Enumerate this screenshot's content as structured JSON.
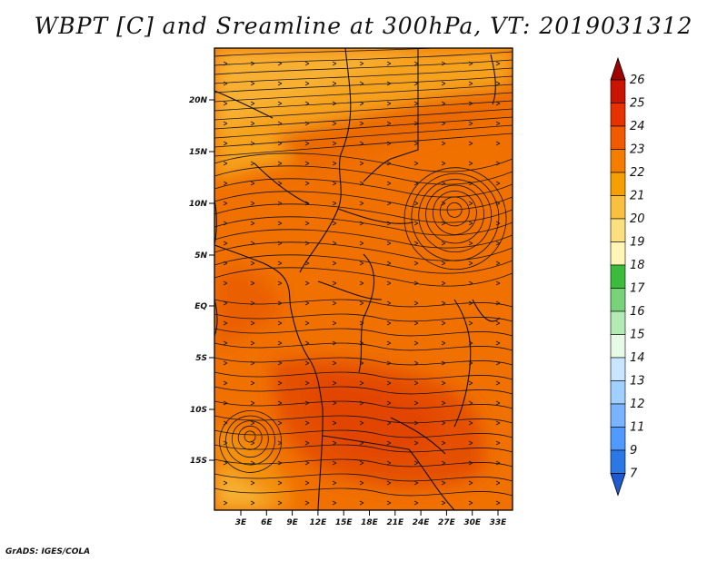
{
  "title": "WBPT [C] and Sreamline at 300hPa, VT: 2019031312",
  "credit": "GrADS: IGES/COLA",
  "map": {
    "lat_ticks": [
      "20N",
      "15N",
      "10N",
      "5N",
      "EQ",
      "5S",
      "10S",
      "15S"
    ],
    "lon_ticks": [
      "3E",
      "6E",
      "9E",
      "12E",
      "15E",
      "18E",
      "21E",
      "24E",
      "27E",
      "30E",
      "33E"
    ]
  },
  "colorbar": {
    "labels": [
      "26",
      "25",
      "24",
      "23",
      "22",
      "21",
      "20",
      "19",
      "18",
      "17",
      "16",
      "15",
      "14",
      "13",
      "12",
      "11",
      "9",
      "7"
    ],
    "colors": [
      "#a00000",
      "#c81400",
      "#e63200",
      "#f05a00",
      "#f47d00",
      "#f5a000",
      "#f8c040",
      "#fbe080",
      "#fff5b4",
      "#3cbc3c",
      "#78d278",
      "#b4eab4",
      "#e6fae6",
      "#c8e6ff",
      "#a0d0ff",
      "#78b4ff",
      "#509aff",
      "#2a78e6",
      "#1e5ad2"
    ]
  }
}
